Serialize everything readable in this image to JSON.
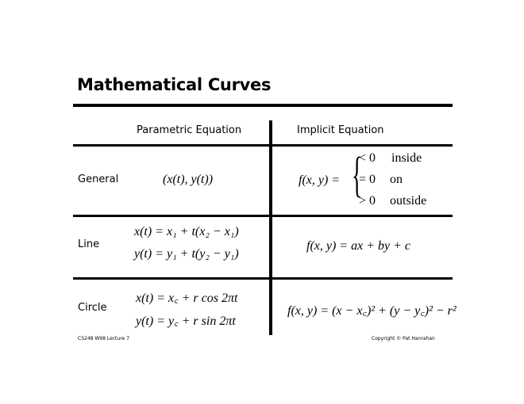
{
  "title": "Mathematical Curves",
  "columns": {
    "parametric": "Parametric Equation",
    "implicit": "Implicit Equation"
  },
  "rows": [
    {
      "label": "General",
      "parametric": [
        "(x(t), y(t))"
      ],
      "implicit_lhs": "f(x, y) =",
      "cases": [
        {
          "cond": "< 0",
          "text": "inside"
        },
        {
          "cond": "= 0",
          "text": "on"
        },
        {
          "cond": "> 0",
          "text": "outside"
        }
      ]
    },
    {
      "label": "Line",
      "parametric": [
        "x(t) = x₁ + t(x₂ − x₁)",
        "y(t) = y₁ + t(y₂ − y₁)"
      ],
      "implicit": "f(x, y) = ax + by + c"
    },
    {
      "label": "Circle",
      "parametric": [
        "x(t) = x꜀ + r cos 2πt",
        "y(t) = y꜀ + r sin 2πt"
      ],
      "implicit": "f(x, y) = (x − x꜀)² + (y − y꜀)² − r²"
    }
  ],
  "footer": {
    "left": "CS248 W98 Lecture 7",
    "right": "Copyright © Pat Hanrahan"
  }
}
